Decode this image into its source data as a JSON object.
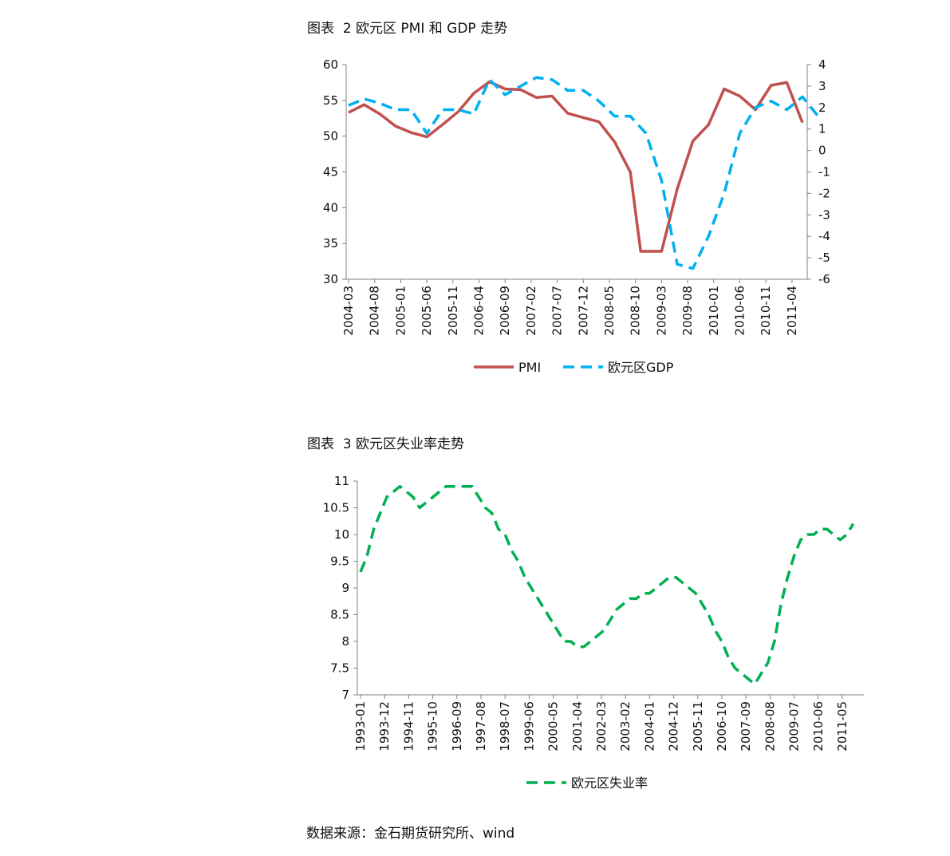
{
  "chart_data": [
    {
      "type": "line",
      "title": "图表  2 欧元区 PMI 和 GDP 走势",
      "categories": [
        "2004-03",
        "2004-08",
        "2005-01",
        "2005-06",
        "2005-11",
        "2006-04",
        "2006-09",
        "2007-02",
        "2007-07",
        "2007-12",
        "2008-05",
        "2008-10",
        "2009-03",
        "2009-08",
        "2010-01",
        "2010-06",
        "2010-11",
        "2011-04"
      ],
      "y_left": {
        "min": 30,
        "max": 60,
        "step": 5
      },
      "y_right": {
        "min": -6,
        "max": 4,
        "step": 1
      },
      "grid": false,
      "legend_position": "bottom",
      "series": [
        {
          "name": "PMI",
          "axis": "left",
          "color": "#c0504d",
          "style": "solid",
          "points": [
            [
              "2004-03",
              53.3
            ],
            [
              "2004-06",
              54.4
            ],
            [
              "2004-09",
              53.1
            ],
            [
              "2004-12",
              51.4
            ],
            [
              "2005-03",
              50.5
            ],
            [
              "2005-06",
              49.9
            ],
            [
              "2005-09",
              51.6
            ],
            [
              "2005-12",
              53.4
            ],
            [
              "2006-03",
              56.0
            ],
            [
              "2006-06",
              57.6
            ],
            [
              "2006-09",
              56.6
            ],
            [
              "2006-12",
              56.5
            ],
            [
              "2007-03",
              55.4
            ],
            [
              "2007-06",
              55.6
            ],
            [
              "2007-09",
              53.2
            ],
            [
              "2007-12",
              52.6
            ],
            [
              "2008-03",
              52.0
            ],
            [
              "2008-06",
              49.2
            ],
            [
              "2008-09",
              45.0
            ],
            [
              "2008-11",
              33.9
            ],
            [
              "2009-01",
              33.9
            ],
            [
              "2009-03",
              33.9
            ],
            [
              "2009-06",
              42.6
            ],
            [
              "2009-09",
              49.3
            ],
            [
              "2009-12",
              51.6
            ],
            [
              "2010-03",
              56.6
            ],
            [
              "2010-06",
              55.6
            ],
            [
              "2010-09",
              53.7
            ],
            [
              "2010-12",
              57.1
            ],
            [
              "2011-03",
              57.5
            ],
            [
              "2011-06",
              51.9
            ]
          ]
        },
        {
          "name": "欧元区GDP",
          "axis": "right",
          "color": "#00b0f0",
          "style": "dashed",
          "points": [
            [
              "2004-03",
              2.1
            ],
            [
              "2004-06",
              2.4
            ],
            [
              "2004-09",
              2.2
            ],
            [
              "2004-12",
              1.9
            ],
            [
              "2005-03",
              1.9
            ],
            [
              "2005-06",
              0.8
            ],
            [
              "2005-09",
              1.9
            ],
            [
              "2005-12",
              1.9
            ],
            [
              "2006-03",
              1.7
            ],
            [
              "2006-06",
              3.3
            ],
            [
              "2006-09",
              2.6
            ],
            [
              "2006-12",
              3.0
            ],
            [
              "2007-03",
              3.4
            ],
            [
              "2007-06",
              3.3
            ],
            [
              "2007-09",
              2.8
            ],
            [
              "2007-12",
              2.8
            ],
            [
              "2008-03",
              2.3
            ],
            [
              "2008-06",
              1.6
            ],
            [
              "2008-09",
              1.6
            ],
            [
              "2008-12",
              0.8
            ],
            [
              "2009-03",
              -1.4
            ],
            [
              "2009-06",
              -5.3
            ],
            [
              "2009-09",
              -5.5
            ],
            [
              "2009-12",
              -4.0
            ],
            [
              "2010-03",
              -2.0
            ],
            [
              "2010-06",
              0.8
            ],
            [
              "2010-09",
              2.0
            ],
            [
              "2010-12",
              2.3
            ],
            [
              "2011-03",
              1.9
            ],
            [
              "2011-06",
              2.5
            ],
            [
              "2011-09",
              1.6
            ]
          ]
        }
      ]
    },
    {
      "type": "line",
      "title": "图表  3 欧元区失业率走势",
      "categories": [
        "1993-01",
        "1993-12",
        "1994-11",
        "1995-10",
        "1996-09",
        "1997-08",
        "1998-07",
        "1999-06",
        "2000-05",
        "2001-04",
        "2002-03",
        "2003-02",
        "2004-01",
        "2004-12",
        "2005-11",
        "2006-10",
        "2007-09",
        "2008-08",
        "2009-07",
        "2010-06",
        "2011-05"
      ],
      "y_left": {
        "min": 7,
        "max": 11,
        "step": 0.5,
        "labels": [
          "7",
          "7.5",
          "8",
          "8.5",
          "9",
          "9.5",
          "10",
          "10.5",
          "11"
        ]
      },
      "grid": false,
      "legend_position": "bottom",
      "series": [
        {
          "name": "欧元区失业率",
          "axis": "left",
          "color": "#00b050",
          "style": "dashed",
          "points": [
            [
              "1993-01",
              9.3
            ],
            [
              "1993-04",
              9.6
            ],
            [
              "1993-07",
              10.1
            ],
            [
              "1993-10",
              10.4
            ],
            [
              "1994-01",
              10.7
            ],
            [
              "1994-04",
              10.8
            ],
            [
              "1994-07",
              10.9
            ],
            [
              "1994-10",
              10.8
            ],
            [
              "1995-01",
              10.7
            ],
            [
              "1995-04",
              10.5
            ],
            [
              "1995-07",
              10.6
            ],
            [
              "1995-10",
              10.7
            ],
            [
              "1996-01",
              10.8
            ],
            [
              "1996-04",
              10.9
            ],
            [
              "1996-07",
              10.9
            ],
            [
              "1996-10",
              10.9
            ],
            [
              "1997-01",
              10.9
            ],
            [
              "1997-04",
              10.9
            ],
            [
              "1997-07",
              10.7
            ],
            [
              "1997-10",
              10.5
            ],
            [
              "1998-01",
              10.4
            ],
            [
              "1998-04",
              10.1
            ],
            [
              "1998-07",
              10.0
            ],
            [
              "1998-10",
              9.7
            ],
            [
              "1999-01",
              9.5
            ],
            [
              "1999-04",
              9.2
            ],
            [
              "1999-07",
              9.0
            ],
            [
              "1999-10",
              8.8
            ],
            [
              "2000-01",
              8.6
            ],
            [
              "2000-04",
              8.4
            ],
            [
              "2000-07",
              8.2
            ],
            [
              "2000-10",
              8.0
            ],
            [
              "2001-01",
              8.0
            ],
            [
              "2001-04",
              7.9
            ],
            [
              "2001-07",
              7.9
            ],
            [
              "2001-10",
              8.0
            ],
            [
              "2002-01",
              8.1
            ],
            [
              "2002-04",
              8.2
            ],
            [
              "2002-07",
              8.4
            ],
            [
              "2002-10",
              8.6
            ],
            [
              "2003-01",
              8.7
            ],
            [
              "2003-04",
              8.8
            ],
            [
              "2003-07",
              8.8
            ],
            [
              "2003-10",
              8.9
            ],
            [
              "2004-01",
              8.9
            ],
            [
              "2004-04",
              9.0
            ],
            [
              "2004-07",
              9.1
            ],
            [
              "2004-10",
              9.2
            ],
            [
              "2005-01",
              9.2
            ],
            [
              "2005-04",
              9.1
            ],
            [
              "2005-07",
              9.0
            ],
            [
              "2005-10",
              8.9
            ],
            [
              "2006-01",
              8.7
            ],
            [
              "2006-04",
              8.5
            ],
            [
              "2006-07",
              8.2
            ],
            [
              "2006-10",
              8.0
            ],
            [
              "2007-01",
              7.7
            ],
            [
              "2007-04",
              7.5
            ],
            [
              "2007-07",
              7.4
            ],
            [
              "2007-10",
              7.3
            ],
            [
              "2008-01",
              7.2
            ],
            [
              "2008-04",
              7.4
            ],
            [
              "2008-07",
              7.6
            ],
            [
              "2008-10",
              8.0
            ],
            [
              "2009-01",
              8.7
            ],
            [
              "2009-04",
              9.2
            ],
            [
              "2009-07",
              9.6
            ],
            [
              "2009-10",
              9.9
            ],
            [
              "2010-01",
              10.0
            ],
            [
              "2010-04",
              10.0
            ],
            [
              "2010-07",
              10.1
            ],
            [
              "2010-10",
              10.1
            ],
            [
              "2011-01",
              10.0
            ],
            [
              "2011-04",
              9.9
            ],
            [
              "2011-07",
              10.0
            ],
            [
              "2011-10",
              10.2
            ]
          ]
        }
      ]
    }
  ],
  "source_text": "数据来源：金石期货研究所、wind"
}
